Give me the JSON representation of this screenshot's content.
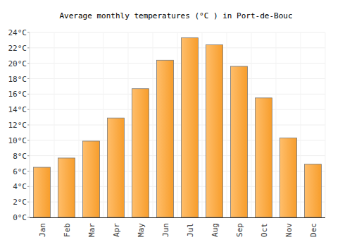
{
  "chart_data": {
    "type": "bar",
    "title": "Average monthly temperatures (°C ) in Port-de-Bouc",
    "categories": [
      "Jan",
      "Feb",
      "Mar",
      "Apr",
      "May",
      "Jun",
      "Jul",
      "Aug",
      "Sep",
      "Oct",
      "Nov",
      "Dec"
    ],
    "values": [
      6.5,
      7.7,
      9.9,
      12.9,
      16.7,
      20.4,
      23.3,
      22.4,
      19.6,
      15.5,
      10.3,
      6.9
    ],
    "color": "#ffa22c",
    "ylim": [
      0,
      24
    ],
    "yticks": [
      {
        "value": 0,
        "label": "0°C"
      },
      {
        "value": 2,
        "label": "2°C"
      },
      {
        "value": 4,
        "label": "4°C"
      },
      {
        "value": 6,
        "label": "6°C"
      },
      {
        "value": 8,
        "label": "8°C"
      },
      {
        "value": 10,
        "label": "10°C"
      },
      {
        "value": 12,
        "label": "12°C"
      },
      {
        "value": 14,
        "label": "14°C"
      },
      {
        "value": 16,
        "label": "16°C"
      },
      {
        "value": 18,
        "label": "18°C"
      },
      {
        "value": 20,
        "label": "20°C"
      },
      {
        "value": 22,
        "label": "22°C"
      },
      {
        "value": 24,
        "label": "24°C"
      }
    ],
    "grid": true
  }
}
